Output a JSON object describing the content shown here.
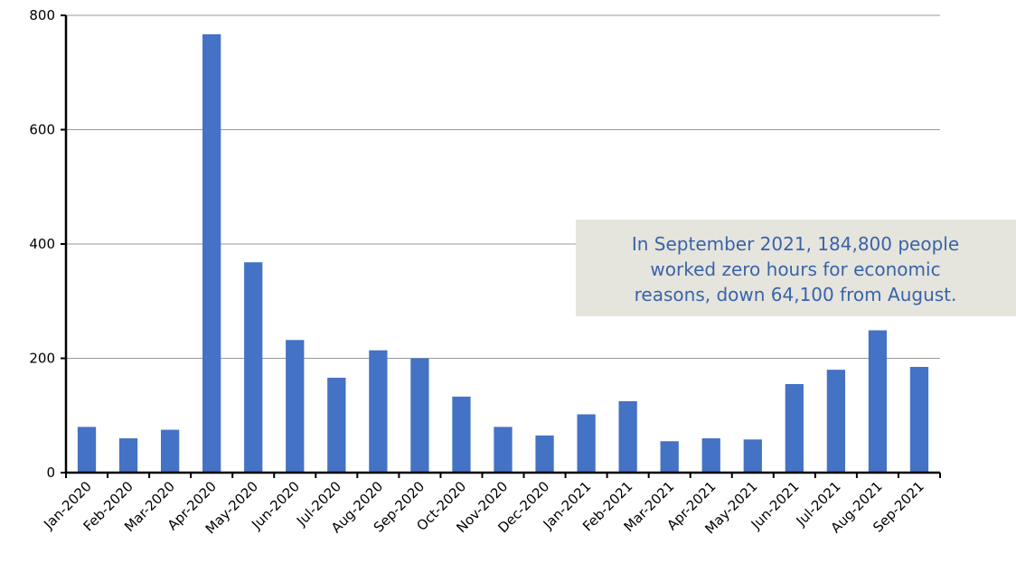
{
  "chart_data": {
    "type": "bar",
    "categories": [
      "Jan-2020",
      "Feb-2020",
      "Mar-2020",
      "Apr-2020",
      "May-2020",
      "Jun-2020",
      "Jul-2020",
      "Aug-2020",
      "Sep-2020",
      "Oct-2020",
      "Nov-2020",
      "Dec-2020",
      "Jan-2021",
      "Feb-2021",
      "Mar-2021",
      "Apr-2021",
      "May-2021",
      "Jun-2021",
      "Jul-2021",
      "Aug-2021",
      "Sep-2021"
    ],
    "values": [
      80,
      60,
      75,
      767,
      368,
      232,
      166,
      214,
      200,
      133,
      80,
      65,
      102,
      125,
      55,
      60,
      58,
      155,
      180,
      249,
      185
    ],
    "color": "#4472c4",
    "ylim": [
      0,
      800
    ],
    "yticks": [
      0,
      200,
      400,
      600,
      800
    ],
    "grid": true,
    "annotation": [
      "In September 2021, 184,800 people",
      "worked zero hours for economic",
      "reasons, down 64,100 from August."
    ]
  }
}
